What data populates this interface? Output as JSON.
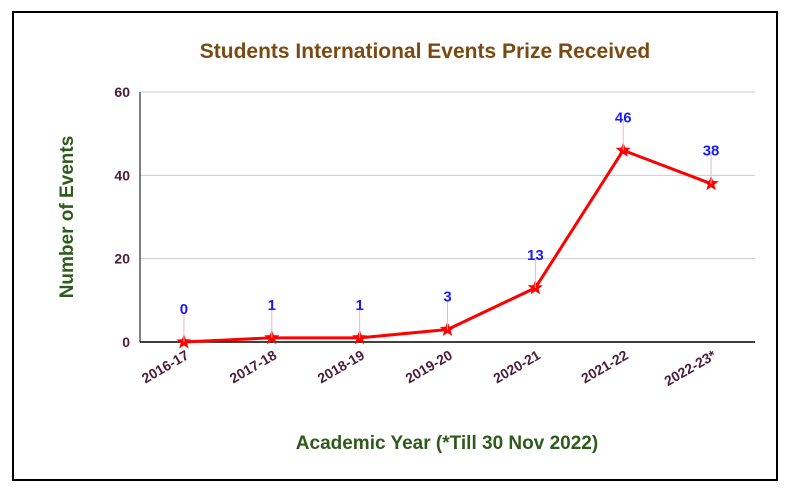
{
  "chart_data": {
    "type": "line",
    "title": "Students International Events Prize Received",
    "xlabel": "Academic Year (*Till 30 Nov 2022)",
    "ylabel": "Number of Events",
    "categories": [
      "2016-17",
      "2017-18",
      "2018-19",
      "2019-20",
      "2020-21",
      "2021-22",
      "2022-23*"
    ],
    "series": [
      {
        "values": [
          0,
          1,
          1,
          3,
          13,
          46,
          38
        ]
      }
    ],
    "ylim": [
      0,
      60
    ],
    "yticks": [
      0,
      20,
      40,
      60
    ],
    "grid": true,
    "legend": "none",
    "colors": {
      "title": "#7a4a12",
      "axis_label": "#2e5a1c",
      "tick_label": "#4a1e3a",
      "data_label": "#1a1aff",
      "line": "#ff0000",
      "grid": "#cccccc"
    }
  }
}
